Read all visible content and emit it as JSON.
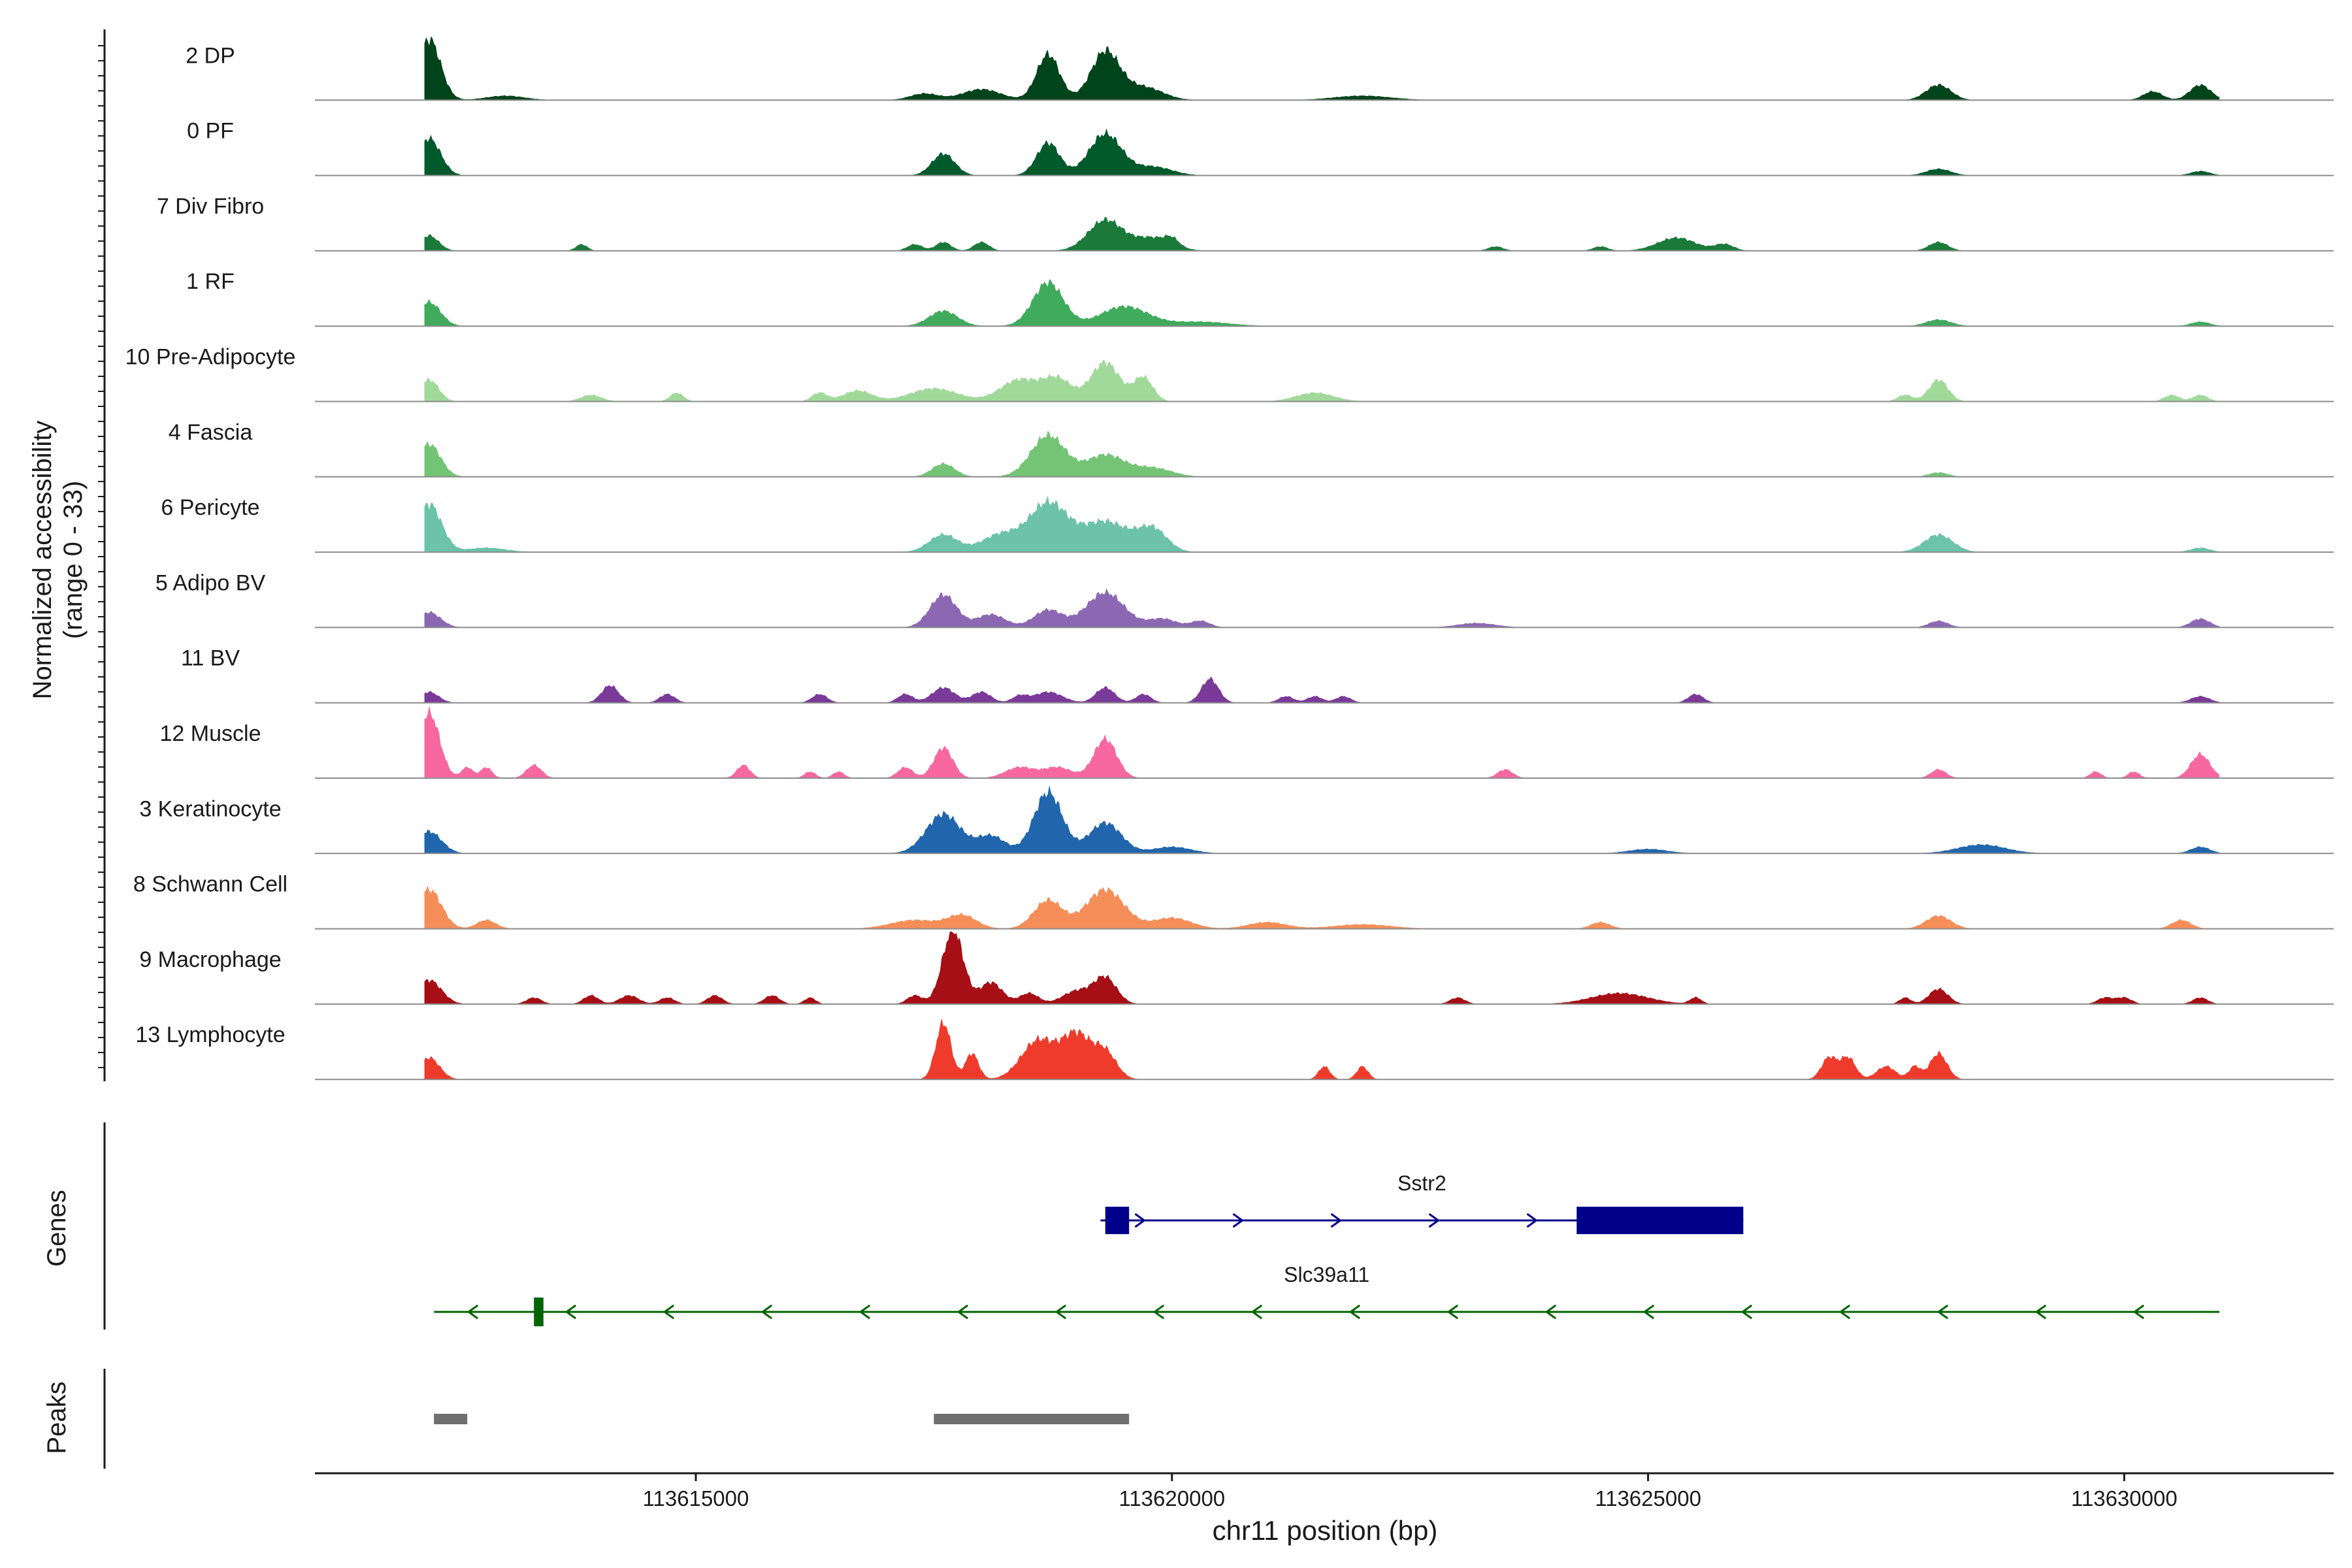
{
  "chart_data": {
    "type": "area",
    "title": "",
    "xlabel": "chr11 position (bp)",
    "ylabel": "Normalized accessibility",
    "ylabel_range": "(range 0 - 33)",
    "xlim": [
      113611000,
      113632200
    ],
    "x_ticks": [
      113615000,
      113620000,
      113625000,
      113630000
    ],
    "x_tick_labels": [
      "113615000",
      "113620000",
      "113625000",
      "113630000"
    ],
    "y_range": [
      0,
      33
    ],
    "tracks": [
      {
        "name": "2 DP",
        "color": "#00441b",
        "background": 0.03,
        "peaks": [
          [
            113612200,
            28,
            120
          ],
          [
            113613000,
            2,
            200
          ],
          [
            113617400,
            3,
            150
          ],
          [
            113618000,
            5,
            200
          ],
          [
            113618700,
            21,
            120
          ],
          [
            113619300,
            22,
            150
          ],
          [
            113619700,
            6,
            200
          ],
          [
            113622000,
            2,
            300
          ],
          [
            113628050,
            7,
            130
          ],
          [
            113630300,
            4,
            100
          ],
          [
            113630800,
            7,
            110
          ]
        ]
      },
      {
        "name": "0 PF",
        "color": "#005a2b",
        "background": 0.03,
        "peaks": [
          [
            113612200,
            17,
            120
          ],
          [
            113617600,
            10,
            120
          ],
          [
            113618700,
            15,
            120
          ],
          [
            113619300,
            19,
            170
          ],
          [
            113619800,
            4,
            200
          ],
          [
            113628050,
            3,
            130
          ],
          [
            113630800,
            2,
            100
          ]
        ]
      },
      {
        "name": "7 Div Fibro",
        "color": "#1b7a3a",
        "background": 0.01,
        "peaks": [
          [
            113612200,
            7,
            100
          ],
          [
            113613800,
            3,
            60
          ],
          [
            113617300,
            3,
            80
          ],
          [
            113617600,
            4,
            80
          ],
          [
            113618000,
            4,
            80
          ],
          [
            113619300,
            14,
            180
          ],
          [
            113619800,
            6,
            200
          ],
          [
            113620000,
            3,
            70
          ],
          [
            113623400,
            2,
            80
          ],
          [
            113624500,
            2,
            80
          ],
          [
            113625300,
            6,
            200
          ],
          [
            113625800,
            3,
            100
          ],
          [
            113628050,
            4,
            100
          ]
        ]
      },
      {
        "name": "1 RF",
        "color": "#41ab5d",
        "background": 0.03,
        "peaks": [
          [
            113612200,
            11,
            120
          ],
          [
            113617600,
            7,
            150
          ],
          [
            113618700,
            20,
            160
          ],
          [
            113619500,
            9,
            250
          ],
          [
            113620300,
            2,
            300
          ],
          [
            113628050,
            3,
            130
          ],
          [
            113630800,
            2,
            100
          ]
        ]
      },
      {
        "name": "10 Pre-Adipocyte",
        "color": "#a1d99b",
        "background": 0.0,
        "peaks": [
          [
            113612200,
            10,
            100
          ],
          [
            113613900,
            3,
            110
          ],
          [
            113614800,
            4,
            70
          ],
          [
            113616300,
            4,
            80
          ],
          [
            113616700,
            5,
            150
          ],
          [
            113617500,
            6,
            250
          ],
          [
            113618400,
            10,
            200
          ],
          [
            113618800,
            10,
            150
          ],
          [
            113619300,
            18,
            150
          ],
          [
            113619700,
            11,
            100
          ],
          [
            113621500,
            4,
            200
          ],
          [
            113627700,
            3,
            80
          ],
          [
            113628050,
            10,
            100
          ],
          [
            113630500,
            3,
            80
          ],
          [
            113630800,
            3,
            80
          ]
        ]
      },
      {
        "name": "4 Fascia",
        "color": "#74c476",
        "background": 0.02,
        "peaks": [
          [
            113612200,
            15,
            120
          ],
          [
            113617600,
            6,
            120
          ],
          [
            113618700,
            19,
            180
          ],
          [
            113619300,
            10,
            200
          ],
          [
            113619800,
            4,
            200
          ],
          [
            113628050,
            2,
            100
          ]
        ]
      },
      {
        "name": "6 Pericyte",
        "color": "#6cc3a7",
        "background": 0.03,
        "peaks": [
          [
            113612200,
            22,
            130
          ],
          [
            113612800,
            2,
            200
          ],
          [
            113617600,
            8,
            150
          ],
          [
            113618200,
            8,
            200
          ],
          [
            113618700,
            22,
            200
          ],
          [
            113619300,
            14,
            250
          ],
          [
            113619800,
            10,
            150
          ],
          [
            113628050,
            8,
            150
          ],
          [
            113630800,
            2,
            100
          ]
        ]
      },
      {
        "name": "5 Adipo BV",
        "color": "#8c68b3",
        "background": 0.02,
        "peaks": [
          [
            113612200,
            7,
            120
          ],
          [
            113617600,
            15,
            140
          ],
          [
            113618100,
            6,
            150
          ],
          [
            113618700,
            8,
            150
          ],
          [
            113619300,
            16,
            200
          ],
          [
            113619900,
            4,
            150
          ],
          [
            113620300,
            3,
            100
          ],
          [
            113623200,
            2,
            200
          ],
          [
            113628050,
            3,
            100
          ],
          [
            113630800,
            4,
            100
          ]
        ]
      },
      {
        "name": "11 BV",
        "color": "#7a3a99",
        "background": 0.0,
        "peaks": [
          [
            113612200,
            5,
            100
          ],
          [
            113614100,
            8,
            90
          ],
          [
            113614700,
            4,
            80
          ],
          [
            113616300,
            4,
            80
          ],
          [
            113617200,
            4,
            80
          ],
          [
            113617600,
            7,
            120
          ],
          [
            113618000,
            5,
            100
          ],
          [
            113618400,
            3,
            80
          ],
          [
            113618700,
            5,
            150
          ],
          [
            113619300,
            7,
            100
          ],
          [
            113619700,
            4,
            80
          ],
          [
            113620400,
            11,
            90
          ],
          [
            113621200,
            3,
            80
          ],
          [
            113621500,
            3,
            80
          ],
          [
            113621800,
            3,
            80
          ],
          [
            113625500,
            4,
            80
          ],
          [
            113630800,
            3,
            100
          ]
        ]
      },
      {
        "name": "12 Muscle",
        "color": "#f768a1",
        "background": 0.0,
        "peaks": [
          [
            113612200,
            30,
            110
          ],
          [
            113612600,
            5,
            60
          ],
          [
            113612800,
            5,
            60
          ],
          [
            113613300,
            6,
            80
          ],
          [
            113615500,
            6,
            70
          ],
          [
            113616200,
            3,
            60
          ],
          [
            113616500,
            3,
            60
          ],
          [
            113617200,
            5,
            80
          ],
          [
            113617600,
            14,
            100
          ],
          [
            113618400,
            5,
            150
          ],
          [
            113618800,
            5,
            150
          ],
          [
            113619300,
            18,
            120
          ],
          [
            113623500,
            4,
            80
          ],
          [
            113628050,
            4,
            80
          ],
          [
            113629700,
            3,
            60
          ],
          [
            113630100,
            3,
            60
          ],
          [
            113630800,
            11,
            100
          ]
        ]
      },
      {
        "name": "3 Keratinocyte",
        "color": "#2166ac",
        "background": 0.05,
        "peaks": [
          [
            113612200,
            10,
            130
          ],
          [
            113617600,
            18,
            180
          ],
          [
            113618100,
            8,
            150
          ],
          [
            113618700,
            28,
            150
          ],
          [
            113619300,
            14,
            170
          ],
          [
            113620000,
            3,
            200
          ],
          [
            113625000,
            2,
            200
          ],
          [
            113628500,
            4,
            250
          ],
          [
            113630800,
            3,
            100
          ]
        ]
      },
      {
        "name": "8 Schwann Cell",
        "color": "#f58e58",
        "background": 0.03,
        "peaks": [
          [
            113612200,
            18,
            130
          ],
          [
            113612800,
            4,
            100
          ],
          [
            113617300,
            4,
            250
          ],
          [
            113617800,
            6,
            150
          ],
          [
            113618700,
            13,
            150
          ],
          [
            113619300,
            18,
            200
          ],
          [
            113620000,
            5,
            200
          ],
          [
            113621000,
            3,
            200
          ],
          [
            113622000,
            2,
            300
          ],
          [
            113624500,
            3,
            100
          ],
          [
            113628050,
            6,
            130
          ],
          [
            113630600,
            4,
            100
          ]
        ]
      },
      {
        "name": "9 Macrophage",
        "color": "#a50f15",
        "background": 0.0,
        "peaks": [
          [
            113612200,
            11,
            130
          ],
          [
            113613300,
            3,
            80
          ],
          [
            113613900,
            4,
            80
          ],
          [
            113614300,
            4,
            100
          ],
          [
            113614700,
            3,
            80
          ],
          [
            113615200,
            4,
            80
          ],
          [
            113615800,
            4,
            80
          ],
          [
            113616200,
            3,
            60
          ],
          [
            113617300,
            4,
            80
          ],
          [
            113617700,
            34,
            110
          ],
          [
            113618100,
            10,
            120
          ],
          [
            113618500,
            5,
            100
          ],
          [
            113619000,
            6,
            150
          ],
          [
            113619300,
            12,
            120
          ],
          [
            113623000,
            3,
            80
          ],
          [
            113624700,
            5,
            300
          ],
          [
            113625500,
            3,
            60
          ],
          [
            113627700,
            3,
            60
          ],
          [
            113628050,
            7,
            100
          ],
          [
            113629800,
            3,
            80
          ],
          [
            113630000,
            3,
            80
          ],
          [
            113630800,
            3,
            80
          ]
        ]
      },
      {
        "name": "13 Lymphocyte",
        "color": "#ef3b2c",
        "background": 0.0,
        "peaks": [
          [
            113612200,
            10,
            110
          ],
          [
            113617600,
            26,
            80
          ],
          [
            113617900,
            12,
            70
          ],
          [
            113618600,
            18,
            180
          ],
          [
            113619000,
            20,
            150
          ],
          [
            113619300,
            12,
            120
          ],
          [
            113621600,
            6,
            60
          ],
          [
            113622000,
            6,
            60
          ],
          [
            113626900,
            10,
            80
          ],
          [
            113627100,
            10,
            80
          ],
          [
            113627500,
            6,
            100
          ],
          [
            113627800,
            6,
            60
          ],
          [
            113628050,
            12,
            90
          ]
        ]
      }
    ],
    "genes": [
      {
        "name": "Sstr2",
        "strand": "+",
        "color": "#00008b",
        "start": 113619250,
        "end": 113626000,
        "exons": [
          [
            113619300,
            113619550
          ],
          [
            113624250,
            113626000
          ]
        ]
      },
      {
        "name": "Slc39a11",
        "strand": "-",
        "color": "#006400",
        "start": 113612250,
        "end": 113631000,
        "exons": [
          [
            113613300,
            113613400
          ]
        ]
      }
    ],
    "peaks_regions": [
      [
        113612250,
        113612600
      ],
      [
        113617500,
        113619550
      ]
    ],
    "panel_labels": {
      "genes": "Genes",
      "peaks": "Peaks"
    }
  }
}
